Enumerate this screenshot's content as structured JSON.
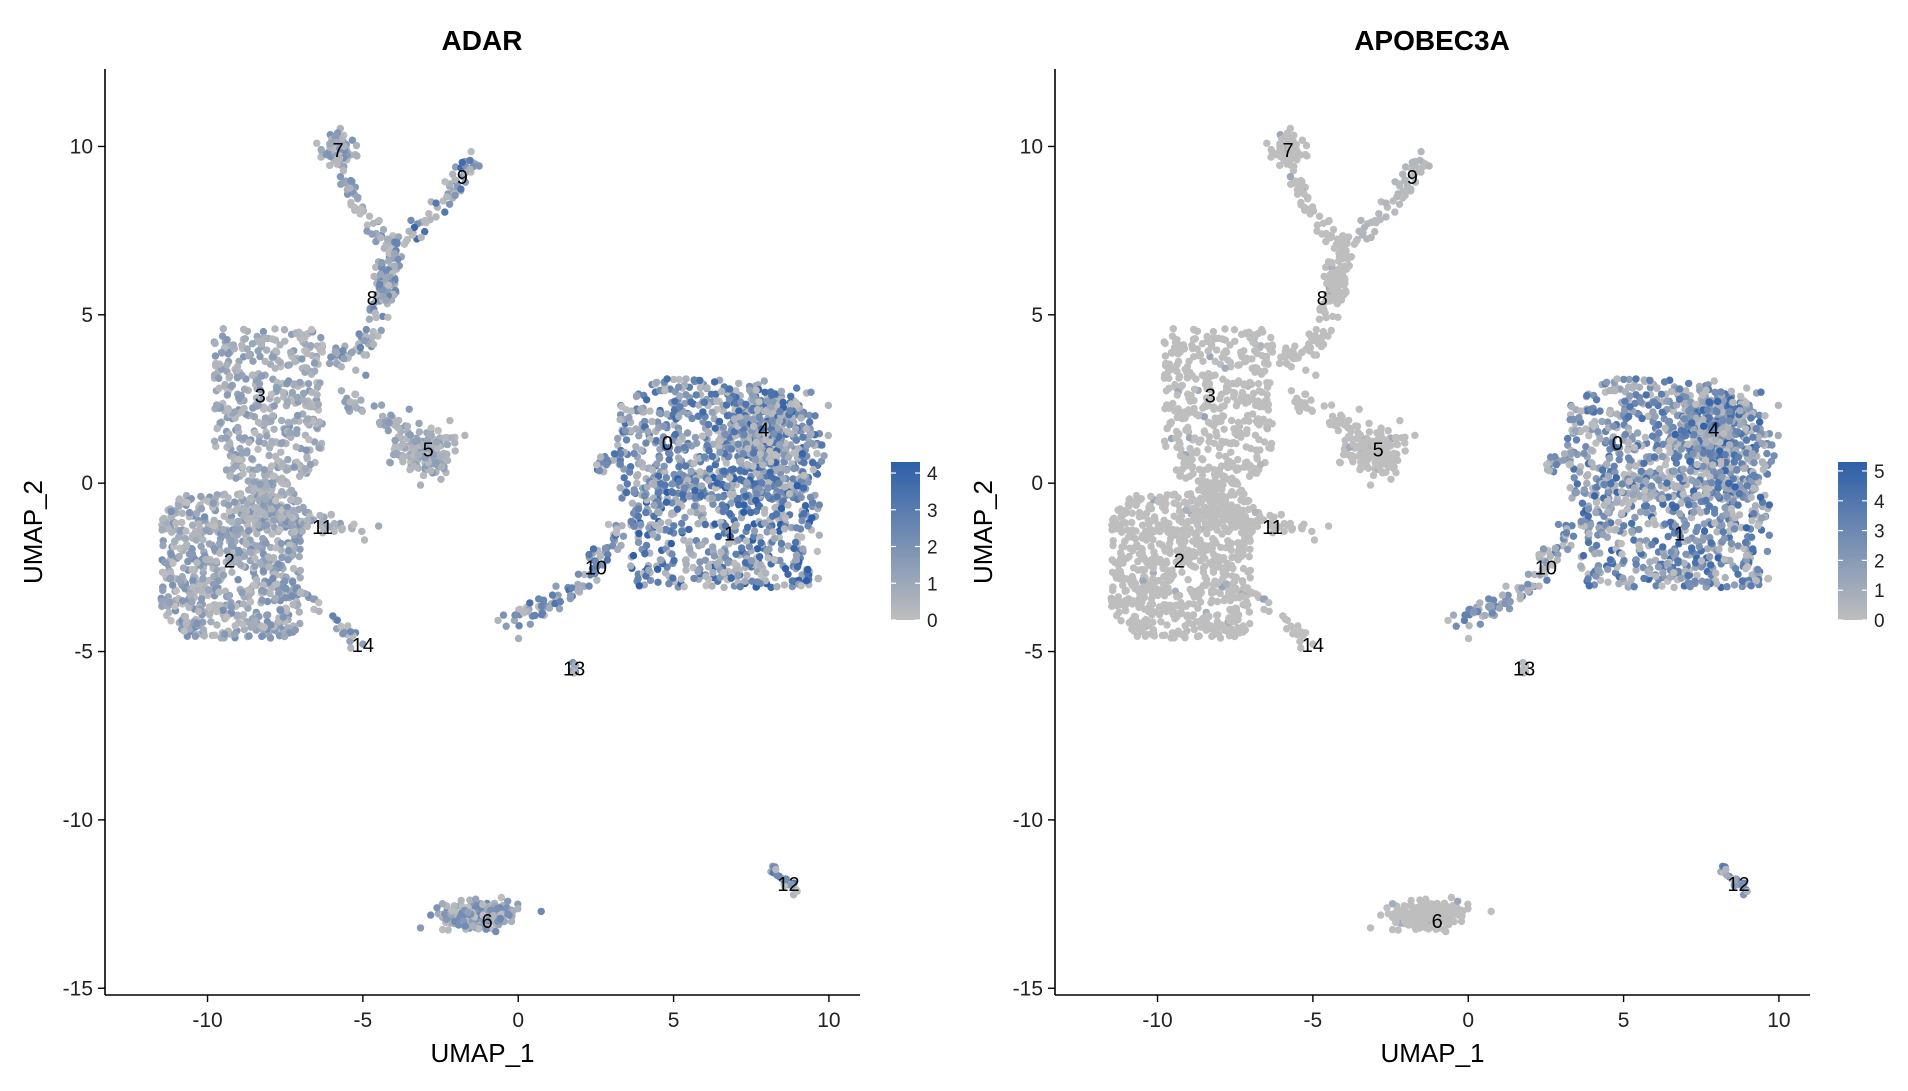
{
  "chart_data": [
    {
      "type": "scatter",
      "title": "ADAR",
      "xlabel": "UMAP_1",
      "ylabel": "UMAP_2",
      "xlim": [
        -13.3,
        11.0
      ],
      "ylim": [
        -15.2,
        12.3
      ],
      "xticks": [
        -10,
        -5,
        0,
        5,
        10
      ],
      "yticks": [
        -15,
        -10,
        -5,
        0,
        5,
        10
      ],
      "xtick_labels": [
        "-10",
        "-5",
        "0",
        "5",
        "10"
      ],
      "ytick_labels": [
        "-15",
        "-10",
        "-5",
        "0",
        "5",
        "10"
      ],
      "color_scale": {
        "low": "#bebebe",
        "high": "#2e5fa8",
        "min": 0,
        "max": 4.3,
        "ticks": [
          0,
          1,
          2,
          3,
          4
        ],
        "tick_labels": [
          "0",
          "1",
          "2",
          "3",
          "4"
        ]
      },
      "clusters": [
        {
          "label": "0",
          "x": 4.8,
          "y": 1.2,
          "mean_expr": 2.1
        },
        {
          "label": "1",
          "x": 6.8,
          "y": -1.5,
          "mean_expr": 2.6
        },
        {
          "label": "2",
          "x": -9.3,
          "y": -2.3,
          "mean_expr": 1.2
        },
        {
          "label": "3",
          "x": -8.3,
          "y": 2.6,
          "mean_expr": 1.0
        },
        {
          "label": "4",
          "x": 7.9,
          "y": 1.6,
          "mean_expr": 2.3
        },
        {
          "label": "5",
          "x": -2.9,
          "y": 1.0,
          "mean_expr": 0.9
        },
        {
          "label": "6",
          "x": -1.0,
          "y": -13.0,
          "mean_expr": 1.4
        },
        {
          "label": "7",
          "x": -5.8,
          "y": 9.9,
          "mean_expr": 1.2
        },
        {
          "label": "8",
          "x": -4.7,
          "y": 5.5,
          "mean_expr": 1.5
        },
        {
          "label": "9",
          "x": -1.8,
          "y": 9.1,
          "mean_expr": 2.2
        },
        {
          "label": "10",
          "x": 2.5,
          "y": -2.5,
          "mean_expr": 2.0
        },
        {
          "label": "11",
          "x": -6.3,
          "y": -1.3,
          "mean_expr": 0.8
        },
        {
          "label": "12",
          "x": 8.7,
          "y": -11.9,
          "mean_expr": 1.9
        },
        {
          "label": "13",
          "x": 1.8,
          "y": -5.5,
          "mean_expr": 1.5
        },
        {
          "label": "14",
          "x": -5.0,
          "y": -4.8,
          "mean_expr": 1.6
        }
      ]
    },
    {
      "type": "scatter",
      "title": "APOBEC3A",
      "xlabel": "UMAP_1",
      "ylabel": "UMAP_2",
      "xlim": [
        -13.3,
        11.0
      ],
      "ylim": [
        -15.2,
        12.3
      ],
      "xticks": [
        -10,
        -5,
        0,
        5,
        10
      ],
      "yticks": [
        -15,
        -10,
        -5,
        0,
        5,
        10
      ],
      "xtick_labels": [
        "-10",
        "-5",
        "0",
        "5",
        "10"
      ],
      "ytick_labels": [
        "-15",
        "-10",
        "-5",
        "0",
        "5",
        "10"
      ],
      "color_scale": {
        "low": "#bebebe",
        "high": "#2e5fa8",
        "min": 0,
        "max": 5.3,
        "ticks": [
          0,
          1,
          2,
          3,
          4,
          5
        ],
        "tick_labels": [
          "0",
          "1",
          "2",
          "3",
          "4",
          "5"
        ]
      },
      "clusters": [
        {
          "label": "0",
          "x": 4.8,
          "y": 1.2,
          "mean_expr": 2.4
        },
        {
          "label": "1",
          "x": 6.8,
          "y": -1.5,
          "mean_expr": 2.8
        },
        {
          "label": "2",
          "x": -9.3,
          "y": -2.3,
          "mean_expr": 0.05
        },
        {
          "label": "3",
          "x": -8.3,
          "y": 2.6,
          "mean_expr": 0.05
        },
        {
          "label": "4",
          "x": 7.9,
          "y": 1.6,
          "mean_expr": 2.9
        },
        {
          "label": "5",
          "x": -2.9,
          "y": 1.0,
          "mean_expr": 0.0
        },
        {
          "label": "6",
          "x": -1.0,
          "y": -13.0,
          "mean_expr": 0.0
        },
        {
          "label": "7",
          "x": -5.8,
          "y": 9.9,
          "mean_expr": 0.0
        },
        {
          "label": "8",
          "x": -4.7,
          "y": 5.5,
          "mean_expr": 0.05
        },
        {
          "label": "9",
          "x": -1.8,
          "y": 9.1,
          "mean_expr": 0.3
        },
        {
          "label": "10",
          "x": 2.5,
          "y": -2.5,
          "mean_expr": 2.0
        },
        {
          "label": "11",
          "x": -6.3,
          "y": -1.3,
          "mean_expr": 0.05
        },
        {
          "label": "12",
          "x": 8.7,
          "y": -11.9,
          "mean_expr": 2.2
        },
        {
          "label": "13",
          "x": 1.8,
          "y": -5.5,
          "mean_expr": 0.3
        },
        {
          "label": "14",
          "x": -5.0,
          "y": -4.8,
          "mean_expr": 0.1
        }
      ]
    }
  ]
}
